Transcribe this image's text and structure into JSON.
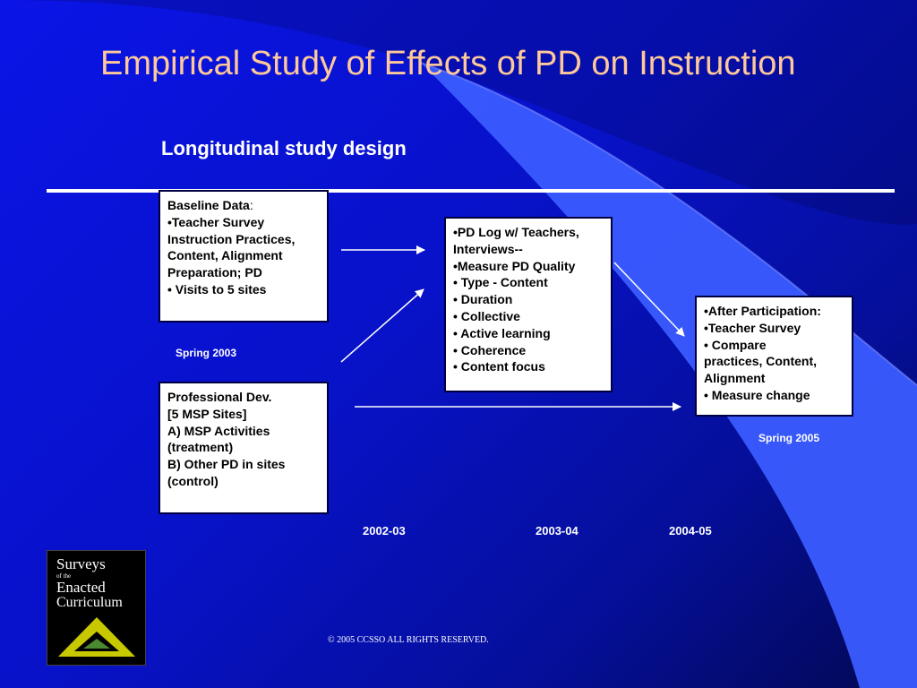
{
  "slide": {
    "title": "Empirical Study of Effects of PD on Instruction",
    "subtitle": "Longitudinal study design",
    "copyright": "© 2005 CCSSO ALL RIGHTS RESERVED."
  },
  "boxes": {
    "baseline": {
      "heading": "Baseline Data",
      "heading_suffix": ":",
      "lines": [
        "•Teacher Survey",
        "Instruction  Practices,",
        "Content, Alignment",
        "Preparation; PD",
        "• Visits to 5 sites"
      ]
    },
    "prof_dev": {
      "lines": [
        "Professional Dev.",
        "[5 MSP Sites]",
        "A) MSP Activities",
        "(treatment)",
        "B) Other PD in sites",
        "(control)"
      ]
    },
    "pd_log": {
      "lines": [
        "•PD Log w/ Teachers,",
        "Interviews--",
        "•Measure PD Quality",
        "• Type  - Content",
        "• Duration",
        "• Collective",
        "• Active learning",
        "• Coherence",
        "• Content focus"
      ]
    },
    "after": {
      "lines": [
        "•After Participation:",
        "•Teacher Survey",
        "• Compare",
        "practices, Content,",
        "Alignment",
        "• Measure change"
      ]
    }
  },
  "labels": {
    "spring_2003": "Spring 2003",
    "spring_2005": "Spring 2005",
    "year_1": "2002-03",
    "year_2": "2003-04",
    "year_3": "2004-05"
  },
  "logo": {
    "line1": "Surveys",
    "line2": "of the",
    "line3": "Enacted",
    "line4": "Curriculum"
  },
  "colors": {
    "title": "#ffc89a",
    "background": "#0a14e6",
    "box_fill": "#ffffff",
    "logo_triangle": "#c8c800"
  }
}
